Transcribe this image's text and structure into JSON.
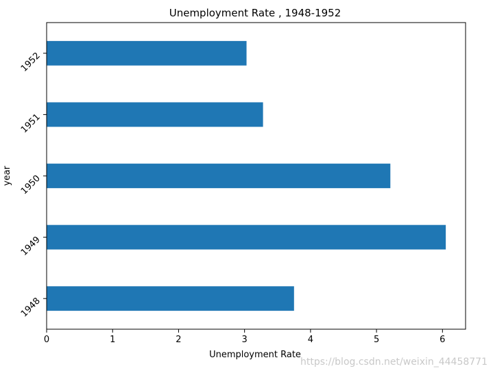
{
  "chart_data": {
    "type": "bar",
    "orientation": "horizontal",
    "title": "Unemployment Rate , 1948-1952",
    "xlabel": "Unemployment Rate",
    "ylabel": "year",
    "categories": [
      "1948",
      "1949",
      "1950",
      "1951",
      "1952"
    ],
    "values": [
      3.75,
      6.05,
      5.21,
      3.28,
      3.03
    ],
    "xlim": [
      0,
      6.35
    ],
    "xticks": [
      "0",
      "1",
      "2",
      "3",
      "4",
      "5",
      "6"
    ],
    "grid": false,
    "bar_color": "#1f77b4"
  },
  "watermark": "https://blog.csdn.net/weixin_44458771"
}
